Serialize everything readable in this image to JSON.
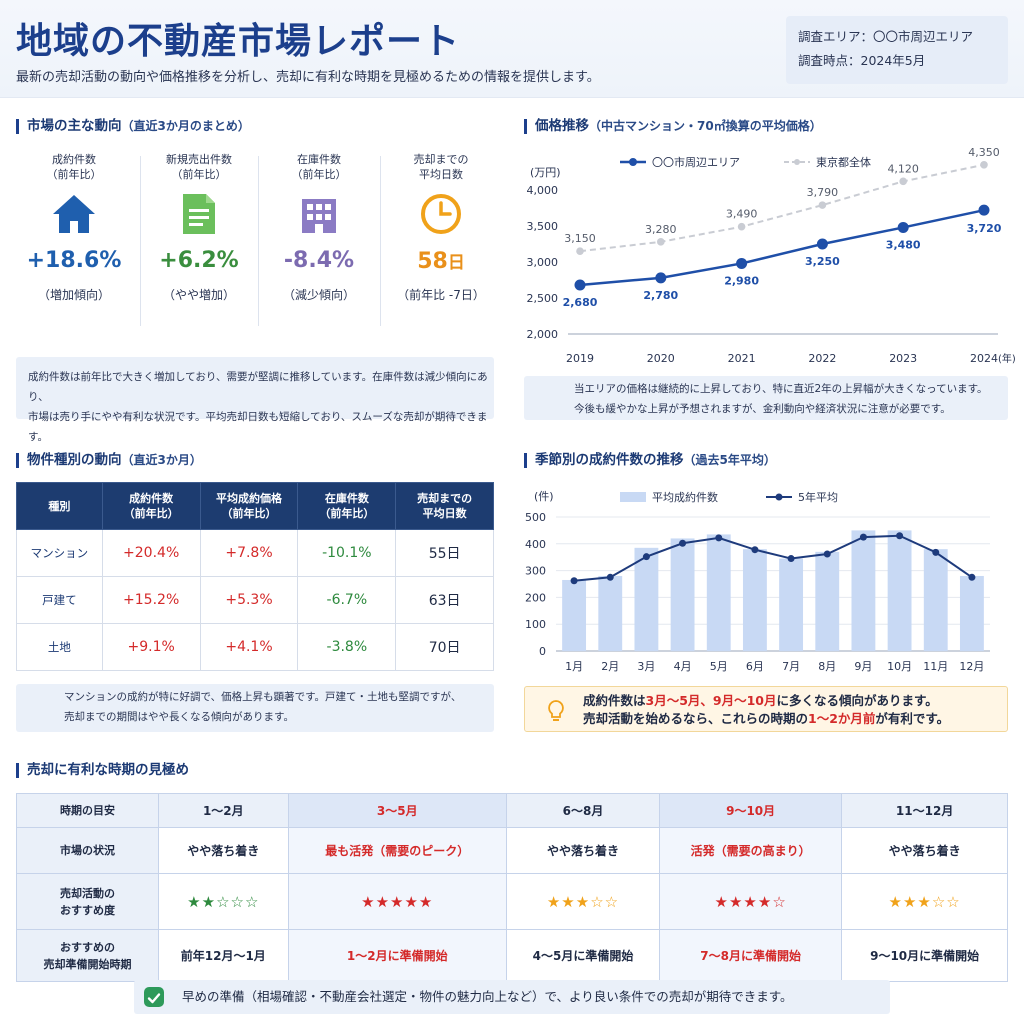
{
  "header": {
    "title": "地域の不動産市場レポート",
    "subtitle": "最新の売却活動の動向や価格推移を分析し、売却に有利な時期を見極めるための情報を提供します。",
    "area": "調査エリア：〇〇市周辺エリア",
    "date": "調査時点：2024年5月"
  },
  "colors": {
    "accent": "#1c3f8c",
    "up": "#d42a2a",
    "down": "#2e8a3e",
    "orange": "#f0a21a",
    "purple": "#7c6bb0"
  },
  "market": {
    "title": "市場の主な動向",
    "sub": "（直近3か月のまとめ）",
    "kpis": [
      {
        "label1": "成約件数",
        "label2": "（前年比）",
        "icon": "house-icon",
        "value": "+18.6%",
        "note": "（増加傾向）",
        "color": "#1f5fae"
      },
      {
        "label1": "新規売出件数",
        "label2": "（前年比）",
        "icon": "document-icon",
        "value": "+6.2%",
        "note": "（やや増加）",
        "color": "#3a8e3e"
      },
      {
        "label1": "在庫件数",
        "label2": "（前年比）",
        "icon": "building-icon",
        "value": "-8.4%",
        "note": "（減少傾向）",
        "color": "#7c6bb0"
      },
      {
        "label1": "売却までの",
        "label2": "平均日数",
        "icon": "clock-icon",
        "value": "58",
        "unit": "日",
        "note": "（前年比 -7日）",
        "color": "#e9901a"
      }
    ],
    "note1": "成約件数は前年比で大きく増加しており、需要が堅調に推移しています。在庫件数は減少傾向にあり、",
    "note2": "市場は売り手にやや有利な状況です。平均売却日数も短縮しており、スムーズな売却が期待できます。"
  },
  "price": {
    "title": "価格推移",
    "sub": "（中古マンション・70㎡換算の平均価格）",
    "note1": "当エリアの価格は継続的に上昇しており、特に直近2年の上昇幅が大きくなっています。",
    "note2": "今後も緩やかな上昇が予想されますが、金利動向や経済状況に注意が必要です。"
  },
  "types": {
    "title": "物件種別の動向",
    "sub": "（直近3か月）",
    "headers": [
      "種別",
      "成約件数\n（前年比）",
      "平均成約価格\n（前年比）",
      "在庫件数\n（前年比）",
      "売却までの\n平均日数"
    ],
    "rows": [
      {
        "name": "マンション",
        "deals": "+20.4%",
        "price": "+7.8%",
        "stock": "-10.1%",
        "days": "55日"
      },
      {
        "name": "戸建て",
        "deals": "+15.2%",
        "price": "+5.3%",
        "stock": "-6.7%",
        "days": "63日"
      },
      {
        "name": "土地",
        "deals": "+9.1%",
        "price": "+4.1%",
        "stock": "-3.8%",
        "days": "70日"
      }
    ],
    "note1": "マンションの成約が特に好調で、価格上昇も顕著です。戸建て・土地も堅調ですが、",
    "note2": "売却までの期間はやや長くなる傾向があります。"
  },
  "seasonal": {
    "title": "季節別の成約件数の推移",
    "sub": "（過去5年平均）",
    "tip": {
      "l1a": "成約件数は",
      "l1b": "3月～5月、9月～10月",
      "l1c": "に多くなる傾向があります。",
      "l2a": "売却活動を始めるなら、これらの時期の",
      "l2b": "1～2か月前",
      "l2c": "が有利です。"
    }
  },
  "timing": {
    "title": "売却に有利な時期の見極め",
    "row_labels": [
      "時期の目安",
      "市場の状況",
      "売却活動の\nおすすめ度",
      "おすすめの\n売却準備開始時期"
    ],
    "columns": [
      {
        "period": "1～2月",
        "status": "やや落ち着き",
        "stars_on": "★★",
        "stars_off": "☆☆☆",
        "prep": "前年12月～1月",
        "hot": false,
        "star_color": "green"
      },
      {
        "period": "3～5月",
        "status": "最も活発（需要のピーク）",
        "stars_on": "★★★★★",
        "stars_off": "",
        "prep": "1～2月に準備開始",
        "hot": true,
        "star_color": "red"
      },
      {
        "period": "6～8月",
        "status": "やや落ち着き",
        "stars_on": "★★★",
        "stars_off": "☆☆",
        "prep": "4～5月に準備開始",
        "hot": false,
        "star_color": "orange"
      },
      {
        "period": "9～10月",
        "status": "活発（需要の高まり）",
        "stars_on": "★★★★",
        "stars_off": "☆",
        "prep": "7～8月に準備開始",
        "hot": true,
        "star_color": "red"
      },
      {
        "period": "11～12月",
        "status": "やや落ち着き",
        "stars_on": "★★★",
        "stars_off": "☆☆",
        "prep": "9～10月に準備開始",
        "hot": false,
        "star_color": "orange"
      }
    ]
  },
  "footer": {
    "text": "早めの準備（相場確認・不動産会社選定・物件の魅力向上など）で、より良い条件での売却が期待できます。"
  },
  "chart_data": [
    {
      "type": "line",
      "ylabel": "(万円)",
      "xlabel": "(年)",
      "x": [
        2019,
        2020,
        2021,
        2022,
        2023,
        2024
      ],
      "ylim": [
        2000,
        4000
      ],
      "yticks": [
        2000,
        2500,
        3000,
        3500,
        4000
      ],
      "series": [
        {
          "name": "〇〇市周辺エリア",
          "values": [
            2680,
            2780,
            2980,
            3250,
            3480,
            3720
          ],
          "color": "#1f4fa8",
          "style": "solid"
        },
        {
          "name": "東京都全体",
          "values": [
            3150,
            3280,
            3490,
            3790,
            4120,
            4350
          ],
          "color": "#c9ccd3",
          "style": "dashed"
        }
      ],
      "legend": "top"
    },
    {
      "type": "bar",
      "ylabel": "(件)",
      "categories": [
        "1月",
        "2月",
        "3月",
        "4月",
        "5月",
        "6月",
        "7月",
        "8月",
        "9月",
        "10月",
        "11月",
        "12月"
      ],
      "ylim": [
        0,
        500
      ],
      "yticks": [
        0,
        100,
        200,
        300,
        400,
        500
      ],
      "series": [
        {
          "name": "平均成約件数",
          "kind": "bar",
          "values": [
            265,
            280,
            385,
            420,
            435,
            380,
            345,
            370,
            450,
            450,
            380,
            280
          ],
          "color": "#c8d9f4"
        },
        {
          "name": "5年平均",
          "kind": "line",
          "values": [
            262,
            275,
            352,
            402,
            422,
            378,
            345,
            362,
            425,
            430,
            368,
            275
          ],
          "color": "#1e3b7c"
        }
      ],
      "legend": "top"
    }
  ]
}
